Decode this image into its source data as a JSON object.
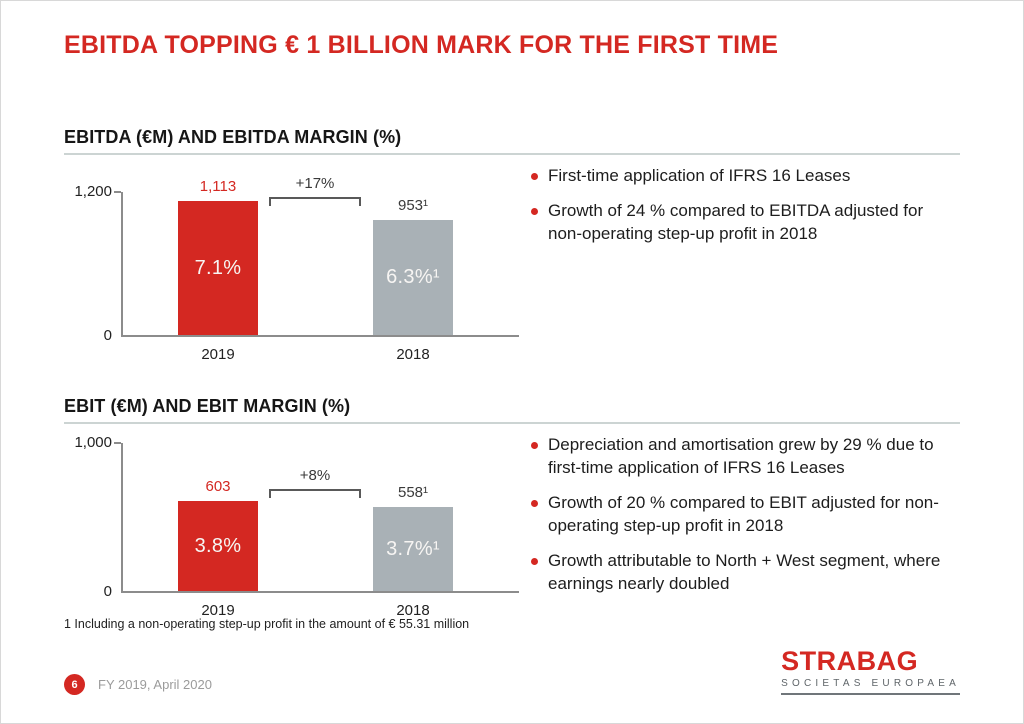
{
  "slide": {
    "title": "EBITDA TOPPING € 1 BILLION MARK FOR THE FIRST TIME",
    "footnote": "1 Including a non-operating step-up profit in the amount of € 55.31 million",
    "footer": {
      "page_number": "6",
      "date_label": "FY 2019, April 2020",
      "logo_title": "STRABAG",
      "logo_subtitle": "SOCIETAS EUROPAEA"
    }
  },
  "sections": [
    {
      "heading": "EBITDA (€M) AND EBITDA MARGIN (%)",
      "bullets": [
        "First-time application of IFRS 16 Leases",
        "Growth of 24 % compared to EBITDA adjusted for non-operating step-up profit in 2018"
      ]
    },
    {
      "heading": "EBIT (€M) AND EBIT MARGIN (%)",
      "bullets": [
        "Depreciation and amortisation grew by 29 % due to first-time application of IFRS 16 Leases",
        "Growth of 20 % compared to EBIT adjusted for non-operating step-up profit in 2018",
        "Growth attributable to North + West segment, where earnings nearly doubled"
      ]
    }
  ],
  "colors": {
    "brand_red": "#d42822",
    "bar_gray": "#a9b1b6",
    "axis_gray": "#8c8c8c",
    "bracket_gray": "#595959"
  },
  "chart_data": [
    {
      "type": "bar",
      "title": "EBITDA (€M) AND EBITDA MARGIN (%)",
      "xlabel": "",
      "ylabel": "EBITDA (€M)",
      "categories": [
        "2019",
        "2018"
      ],
      "values": [
        1113,
        953
      ],
      "value_labels": [
        "1,113",
        "953¹"
      ],
      "margin_labels": [
        "7.1%",
        "6.3%¹"
      ],
      "growth_label": "+17%",
      "ylim": [
        0,
        1200
      ],
      "ytick_labels": {
        "top": "1,200",
        "bottom": "0"
      },
      "grid": false,
      "legend": false,
      "bar_colors": [
        "#d42822",
        "#a9b1b6"
      ],
      "value_label_colors": [
        "#d42822",
        "#3a3a3a"
      ]
    },
    {
      "type": "bar",
      "title": "EBIT (€M) AND EBIT MARGIN (%)",
      "xlabel": "",
      "ylabel": "EBIT (€M)",
      "categories": [
        "2019",
        "2018"
      ],
      "values": [
        603,
        558
      ],
      "value_labels": [
        "603",
        "558¹"
      ],
      "margin_labels": [
        "3.8%",
        "3.7%¹"
      ],
      "growth_label": "+8%",
      "ylim": [
        0,
        1000
      ],
      "ytick_labels": {
        "top": "1,000",
        "bottom": "0"
      },
      "grid": false,
      "legend": false,
      "bar_colors": [
        "#d42822",
        "#a9b1b6"
      ],
      "value_label_colors": [
        "#d42822",
        "#3a3a3a"
      ]
    }
  ]
}
